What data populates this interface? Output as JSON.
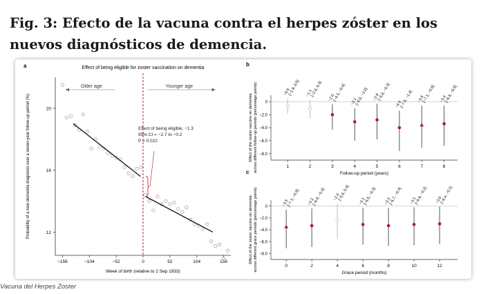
{
  "heading": "Fig. 3: Efecto de la vacuna contra el herpes zóster en los nuevos diagnósticos de demencia.",
  "caption": "Vacuna del Herpes Zoster",
  "colors": {
    "accent": "#b2182b",
    "fit_line": "#111111",
    "ci": "#555555",
    "grid": "#bbbbbb"
  },
  "chart_data": [
    {
      "type": "scatter",
      "panel_label": "a",
      "title": "Effect of being eligible for zoster vaccination on dementia",
      "xlabel": "Week of birth (relative to 2 Sep 1933)",
      "ylabel": "Probability of a new dementia diagnosis over a seven-year follow-up period (%)",
      "xlim": [
        -170,
        170
      ],
      "ylim": [
        10.5,
        22
      ],
      "x_ticks": [
        -156,
        -104,
        -52,
        0,
        52,
        104,
        156
      ],
      "y_ticks": [
        12,
        16,
        20
      ],
      "region_labels": {
        "left": "Older age",
        "right": "Younger age"
      },
      "cutoff_x": 0,
      "annotation": [
        "Effect of being eligible, −1.3",
        "95% CI = −2.7 to −0.2",
        "P = 0.022"
      ],
      "x": [
        -156,
        -148,
        -140,
        -132,
        -124,
        -116,
        -108,
        -100,
        -92,
        -84,
        -76,
        -68,
        -60,
        -52,
        -44,
        -36,
        -28,
        -20,
        -12,
        -4,
        4,
        12,
        20,
        28,
        36,
        44,
        52,
        60,
        68,
        76,
        84,
        92,
        100,
        108,
        116,
        124,
        132,
        140,
        148,
        156,
        164
      ],
      "y": [
        21.5,
        19.4,
        19.5,
        18.9,
        18.6,
        19.6,
        18.5,
        17.4,
        18.0,
        17.5,
        17.4,
        17.1,
        16.9,
        16.8,
        16.7,
        16.2,
        15.8,
        15.6,
        16.1,
        16.2,
        14.4,
        14.0,
        13.4,
        14.3,
        13.8,
        14.0,
        13.8,
        13.9,
        13.5,
        13.3,
        13.6,
        12.8,
        12.5,
        12.4,
        12.2,
        12.5,
        11.4,
        11.1,
        11.2,
        10.3,
        10.8
      ],
      "fit_left": {
        "x": [
          -135,
          -5
        ],
        "y": [
          19.0,
          15.6
        ]
      },
      "fit_right": {
        "x": [
          5,
          135
        ],
        "y": [
          14.3,
          12.0
        ]
      }
    },
    {
      "type": "scatter",
      "panel_label": "b",
      "xlabel": "Follow-up period (years)",
      "ylabel": "Effect of the zoster vaccine on dementia across different follow-up periods (percentage points)",
      "x_ticks": [
        1,
        2,
        3,
        4,
        5,
        6,
        7,
        8
      ],
      "y_ticks": [
        0,
        -2.0,
        -4.0,
        -6.0,
        -8.0
      ],
      "ylim": [
        -9,
        1
      ],
      "x": [
        1,
        2,
        3,
        4,
        5,
        6,
        7,
        8
      ],
      "y": [
        -0.6,
        -1.1,
        -2.0,
        -3.1,
        -2.8,
        -4.0,
        -3.6,
        -3.4
      ],
      "ci_low": [
        -1.8,
        -2.6,
        -4.3,
        -6.0,
        -5.8,
        -7.6,
        -7.1,
        -6.8
      ],
      "ci_high": [
        0.5,
        0.3,
        -0.4,
        -1.0,
        -0.3,
        -1.4,
        -0.6,
        -0.6
      ],
      "markers": [
        "open",
        "open",
        "filled",
        "filled",
        "filled",
        "filled",
        "triangle",
        "filled"
      ],
      "value_labels": [
        "−0.6",
        "−1.1",
        "−2.0",
        "−3.1",
        "−2.8",
        "−4.0",
        "−3.6",
        "−3.4"
      ],
      "ci_labels": [
        "[−1.8, 0.5]",
        "[−2.6, 0.3]",
        "[−4.3, −0.4]",
        "[−6.0, −1.0]",
        "[−5.8, −0.3]",
        "[−7.6, −1.4]",
        "[−7.1, −0.6]",
        "[−6.8, −0.6]"
      ]
    },
    {
      "type": "scatter",
      "panel_label": "c",
      "xlabel": "Grace period (months)",
      "ylabel": "Effect of the zoster vaccine on dementia across different grace periods (percentage points)",
      "x_ticks": [
        0,
        2,
        4,
        6,
        8,
        10,
        12
      ],
      "y_ticks": [
        0,
        -2.0,
        -4.0,
        -6.0,
        -8.0
      ],
      "ylim": [
        -9,
        1
      ],
      "x": [
        0,
        2,
        4,
        6,
        8,
        10,
        12
      ],
      "y": [
        -3.5,
        -3.3,
        -2.4,
        -3.1,
        -3.3,
        -3.1,
        -3.0
      ],
      "ci_low": [
        -7.1,
        -6.9,
        -5.6,
        -6.5,
        -6.7,
        -6.6,
        -6.4
      ],
      "ci_high": [
        -0.6,
        -0.4,
        0.4,
        -0.3,
        -0.3,
        -0.2,
        -0.1
      ],
      "markers": [
        "triangle",
        "filled",
        "open",
        "filled",
        "filled",
        "filled",
        "filled"
      ],
      "value_labels": [
        "−3.5",
        "−3.3",
        "−2.4",
        "−3.1",
        "−3.3",
        "−3.1",
        "−3.0"
      ],
      "ci_labels": [
        "[−7.1, −0.6]",
        "[−6.9, −0.4]",
        "[−5.6, 0.4]",
        "[−6.5, −0.3]",
        "[−6.7, −0.3]",
        "[−6.6, −0.2]",
        "[−6.4, −0.1]"
      ]
    }
  ]
}
